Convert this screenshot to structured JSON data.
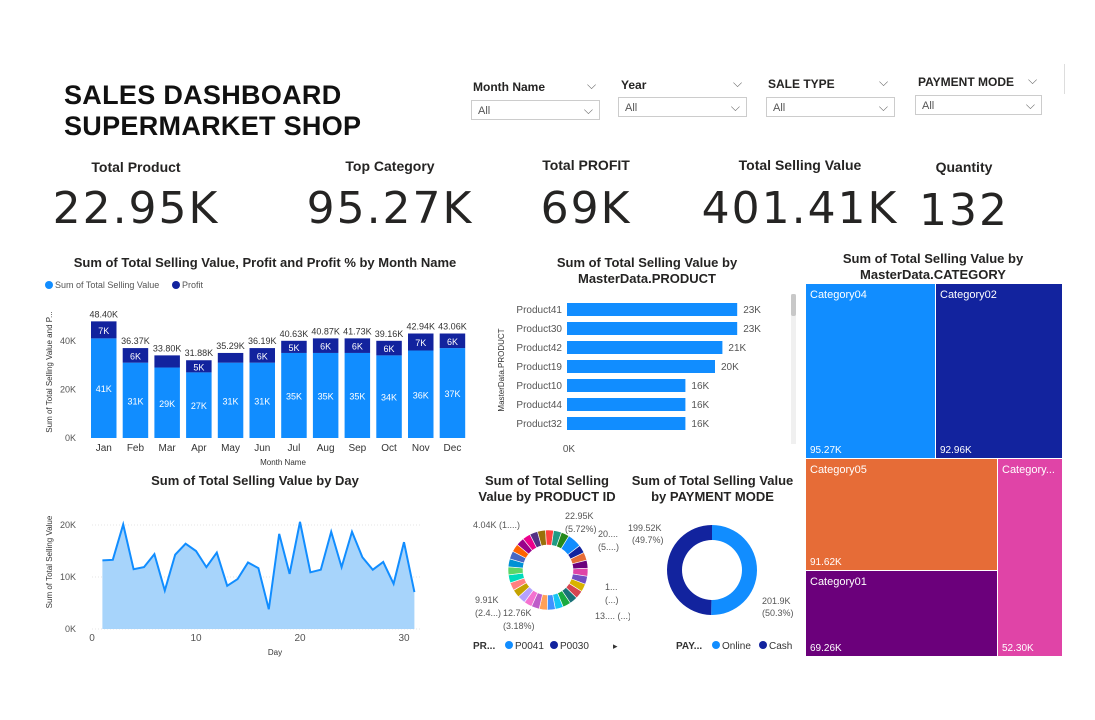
{
  "dashboard": {
    "title_line1": "SALES DASHBOARD",
    "title_line2": "SUPERMARKET SHOP"
  },
  "slicers": [
    {
      "label": "Month Name",
      "value": "All"
    },
    {
      "label": "Year",
      "value": "All"
    },
    {
      "label": "SALE TYPE",
      "value": "All"
    },
    {
      "label": "PAYMENT MODE",
      "value": "All"
    }
  ],
  "kpis": [
    {
      "label": "Total Product",
      "value": "22.95K"
    },
    {
      "label": "Top Category",
      "value": "95.27K"
    },
    {
      "label": "Total PROFIT",
      "value": "69K"
    },
    {
      "label": "Total Selling Value",
      "value": "401.41K"
    },
    {
      "label": "Quantity",
      "value": "132"
    }
  ],
  "colors": {
    "accent": "#118DFF",
    "dark": "#12239E",
    "orange": "#E66C37",
    "purple": "#6B007B",
    "pink": "#E044A7",
    "area": "#A7D4FB"
  },
  "chart_data": [
    {
      "id": "monthly",
      "type": "bar",
      "title": "Sum of Total Selling Value, Profit and Profit % by Month Name",
      "xlabel": "Month Name",
      "ylabel": "Sum of Total Selling Value and P...",
      "legend": [
        "Sum of Total Selling Value",
        "Profit"
      ],
      "categories": [
        "Jan",
        "Feb",
        "Mar",
        "Apr",
        "May",
        "Jun",
        "Jul",
        "Aug",
        "Sep",
        "Oct",
        "Nov",
        "Dec"
      ],
      "series": [
        {
          "name": "Sum of Total Selling Value",
          "values": [
            41,
            31,
            29,
            27,
            31,
            31,
            35,
            35,
            35,
            34,
            36,
            37
          ],
          "labels": [
            "41K",
            "31K",
            "29K",
            "27K",
            "31K",
            "31K",
            "35K",
            "35K",
            "35K",
            "34K",
            "36K",
            "37K"
          ]
        },
        {
          "name": "Profit",
          "values": [
            7,
            6,
            5,
            5,
            4,
            6,
            5,
            6,
            6,
            6,
            7,
            6
          ],
          "labels": [
            "7K",
            "6K",
            "",
            "5K",
            "",
            "6K",
            "5K",
            "6K",
            "6K",
            "6K",
            "7K",
            "6K"
          ]
        }
      ],
      "totals": [
        "48.40K",
        "36.37K",
        "33.80K",
        "31.88K",
        "35.29K",
        "36.19K",
        "40.63K",
        "40.87K",
        "41.73K",
        "39.16K",
        "42.94K",
        "43.06K"
      ],
      "yticks": [
        "0K",
        "20K",
        "40K"
      ],
      "ylim": [
        0,
        50
      ]
    },
    {
      "id": "product",
      "type": "bar",
      "orientation": "horizontal",
      "title": "Sum of Total Selling Value by MasterData.PRODUCT",
      "ylabel": "MasterData.PRODUCT",
      "categories": [
        "Product41",
        "Product30",
        "Product42",
        "Product19",
        "Product10",
        "Product44",
        "Product32"
      ],
      "values": [
        23,
        23,
        21,
        20,
        16,
        16,
        16
      ],
      "labels": [
        "23K",
        "23K",
        "21K",
        "20K",
        "16K",
        "16K",
        "16K"
      ],
      "xtick": "0K",
      "xlim": [
        0,
        25
      ]
    },
    {
      "id": "category",
      "type": "treemap",
      "title": "Sum of Total Selling Value by MasterData.CATEGORY",
      "categories": [
        "Category04",
        "Category02",
        "Category05",
        "Category...",
        "Category01"
      ],
      "values": [
        95.27,
        92.96,
        91.62,
        52.3,
        69.26
      ],
      "labels": [
        "95.27K",
        "92.96K",
        "91.62K",
        "52.30K",
        "69.26K"
      ]
    },
    {
      "id": "day",
      "type": "area",
      "title": "Sum of Total Selling Value by Day",
      "xlabel": "Day",
      "ylabel": "Sum of Total Selling Value",
      "x": [
        1,
        2,
        3,
        4,
        5,
        6,
        7,
        8,
        9,
        10,
        11,
        12,
        13,
        14,
        15,
        16,
        17,
        18,
        19,
        20,
        21,
        22,
        23,
        24,
        25,
        26,
        27,
        28,
        29,
        30,
        31
      ],
      "values": [
        13.2,
        13.3,
        20.1,
        11.5,
        11.9,
        14.4,
        7.4,
        14.3,
        16.4,
        15.0,
        11.9,
        14.7,
        8.3,
        9.6,
        12.8,
        11.7,
        3.8,
        18.3,
        10.6,
        20.6,
        10.9,
        11.4,
        18.7,
        11.9,
        18.7,
        13.8,
        11.4,
        12.9,
        8.7,
        16.7,
        7.1
      ],
      "xticks": [
        "0",
        "10",
        "20",
        "30"
      ],
      "yticks": [
        "0K",
        "10K",
        "20K"
      ],
      "xlim": [
        0,
        32
      ],
      "ylim": [
        0,
        24
      ]
    },
    {
      "id": "productid",
      "type": "pie",
      "title": "Sum of Total Selling Value by PRODUCT ID",
      "legend_title": "PR...",
      "legend": [
        "P0041",
        "P0030"
      ],
      "callouts": [
        "4.04K (1....)",
        "22.95K",
        "(5.72%)",
        "20....",
        "(5....)",
        "1...",
        "(...)",
        "13.... (...)",
        "12.76K",
        "(3.18%)",
        "9.91K",
        "(2.4...)"
      ]
    },
    {
      "id": "payment",
      "type": "pie",
      "title": "Sum of Total Selling Value by PAYMENT MODE",
      "legend_title": "PAY...",
      "categories": [
        "Online",
        "Cash"
      ],
      "values": [
        201.9,
        199.52
      ],
      "labels": [
        "201.9K",
        "199.52K"
      ],
      "pcts": [
        "(50.3%)",
        "(49.7%)"
      ]
    }
  ]
}
